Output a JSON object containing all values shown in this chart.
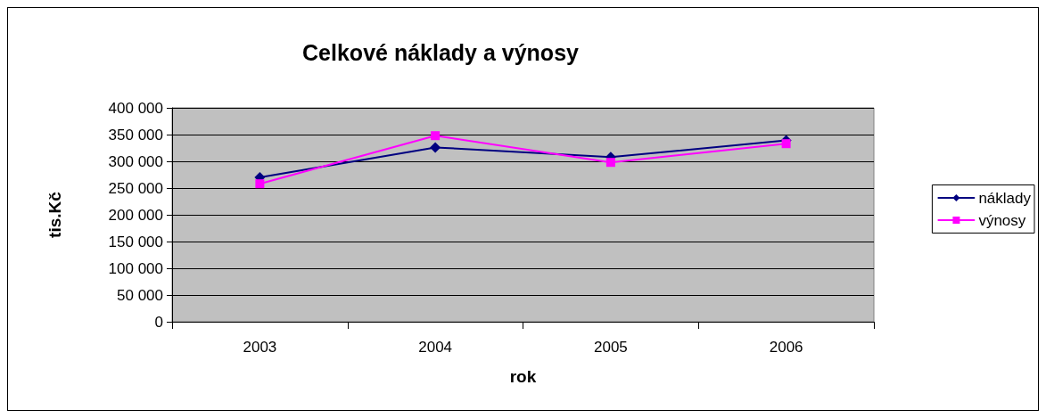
{
  "chart_data": {
    "type": "line",
    "title": "Celkové náklady a výnosy",
    "xlabel": "rok",
    "ylabel": "tis.Kč",
    "categories": [
      "2003",
      "2004",
      "2005",
      "2006"
    ],
    "series": [
      {
        "name": "náklady",
        "color": "#000080",
        "marker": "diamond",
        "values": [
          270000,
          326000,
          308000,
          339000
        ]
      },
      {
        "name": "výnosy",
        "color": "#ff00ff",
        "marker": "square",
        "values": [
          258000,
          348000,
          298000,
          333000
        ]
      }
    ],
    "ylim": [
      0,
      400000
    ],
    "yticks": [
      {
        "value": 0,
        "label": "0"
      },
      {
        "value": 50000,
        "label": "50 000"
      },
      {
        "value": 100000,
        "label": "100 000"
      },
      {
        "value": 150000,
        "label": "150 000"
      },
      {
        "value": 200000,
        "label": "200 000"
      },
      {
        "value": 250000,
        "label": "250 000"
      },
      {
        "value": 300000,
        "label": "300 000"
      },
      {
        "value": 350000,
        "label": "350 000"
      },
      {
        "value": 400000,
        "label": "400 000"
      }
    ],
    "grid": "y",
    "legend": "right",
    "line_style": "solid"
  }
}
